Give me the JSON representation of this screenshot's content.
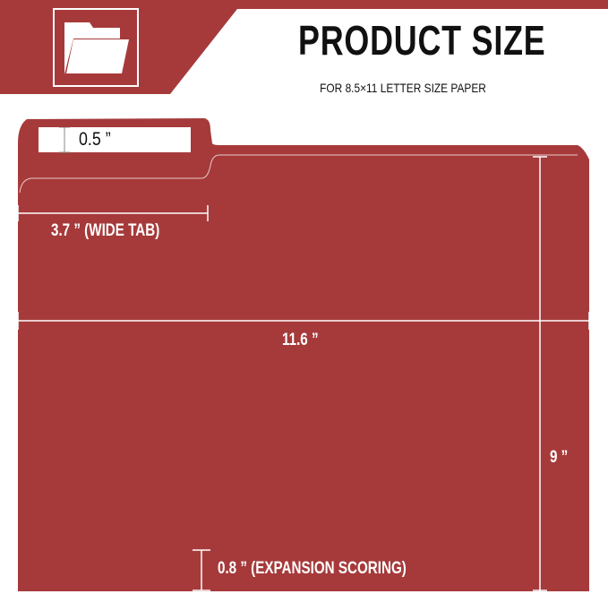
{
  "header": {
    "icon": "folder-icon",
    "title": "PRODUCT SIZE",
    "subtitle": "FOR 8.5×11 LETTER SIZE PAPER"
  },
  "dimensions": {
    "tab_height": "0.5 ”",
    "tab_width": "3.7 ” (WIDE TAB)",
    "width": "11.6 ”",
    "height": "9 ”",
    "expansion": "0.8 ” (EXPANSION SCORING)"
  },
  "colors": {
    "brand": "#a63a3b",
    "text_dark": "#111111"
  }
}
